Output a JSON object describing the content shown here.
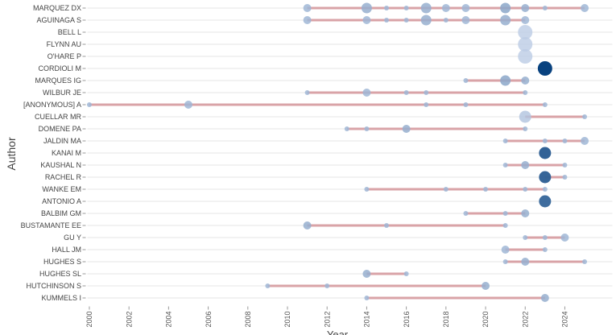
{
  "chart_data": {
    "type": "scatter",
    "xlabel": "Year",
    "ylabel": "Author",
    "xlim": [
      1999.9,
      2026.4
    ],
    "x_ticks": [
      2000,
      2002,
      2004,
      2006,
      2008,
      2010,
      2012,
      2014,
      2016,
      2018,
      2020,
      2022,
      2024
    ],
    "grid": "horizontal",
    "colors": {
      "timeline": "#d9a3a7",
      "bubble_light": "#c5d3ea",
      "bubble_dark": "#08427f",
      "grid": "#e6e6e6"
    },
    "authors": [
      {
        "name": "MARQUEZ DX",
        "points": [
          {
            "year": 2011,
            "size": 2,
            "shade": 0.2
          },
          {
            "year": 2014,
            "size": 3,
            "shade": 0.25
          },
          {
            "year": 2015,
            "size": 1,
            "shade": 0.2
          },
          {
            "year": 2016,
            "size": 1,
            "shade": 0.2
          },
          {
            "year": 2017,
            "size": 3,
            "shade": 0.25
          },
          {
            "year": 2018,
            "size": 2,
            "shade": 0.2
          },
          {
            "year": 2019,
            "size": 2,
            "shade": 0.2
          },
          {
            "year": 2021,
            "size": 3,
            "shade": 0.3
          },
          {
            "year": 2022,
            "size": 2,
            "shade": 0.25
          },
          {
            "year": 2023,
            "size": 1,
            "shade": 0.2
          },
          {
            "year": 2025,
            "size": 2,
            "shade": 0.2
          }
        ]
      },
      {
        "name": "AGUINAGA S",
        "points": [
          {
            "year": 2011,
            "size": 2,
            "shade": 0.2
          },
          {
            "year": 2014,
            "size": 2,
            "shade": 0.2
          },
          {
            "year": 2015,
            "size": 1,
            "shade": 0.2
          },
          {
            "year": 2016,
            "size": 1,
            "shade": 0.2
          },
          {
            "year": 2017,
            "size": 3,
            "shade": 0.25
          },
          {
            "year": 2018,
            "size": 1,
            "shade": 0.2
          },
          {
            "year": 2019,
            "size": 2,
            "shade": 0.2
          },
          {
            "year": 2021,
            "size": 3,
            "shade": 0.25
          },
          {
            "year": 2022,
            "size": 2,
            "shade": 0.2
          }
        ]
      },
      {
        "name": "BELL L",
        "points": [
          {
            "year": 2022,
            "size": 5,
            "shade": 0.05
          }
        ]
      },
      {
        "name": "FLYNN AU",
        "points": [
          {
            "year": 2022,
            "size": 5,
            "shade": 0.05
          }
        ]
      },
      {
        "name": "O'HARE P",
        "points": [
          {
            "year": 2022,
            "size": 5,
            "shade": 0.05
          }
        ]
      },
      {
        "name": "CORDIOLI M",
        "points": [
          {
            "year": 2023,
            "size": 5,
            "shade": 1.0
          }
        ]
      },
      {
        "name": "MARQUES IG",
        "points": [
          {
            "year": 2019,
            "size": 1,
            "shade": 0.2
          },
          {
            "year": 2021,
            "size": 3,
            "shade": 0.3
          },
          {
            "year": 2022,
            "size": 2,
            "shade": 0.25
          }
        ]
      },
      {
        "name": "WILBUR JE",
        "points": [
          {
            "year": 2011,
            "size": 1,
            "shade": 0.2
          },
          {
            "year": 2014,
            "size": 2,
            "shade": 0.2
          },
          {
            "year": 2016,
            "size": 1,
            "shade": 0.2
          },
          {
            "year": 2017,
            "size": 1,
            "shade": 0.2
          },
          {
            "year": 2022,
            "size": 1,
            "shade": 0.2
          }
        ]
      },
      {
        "name": "[ANONYMOUS] A",
        "points": [
          {
            "year": 2000,
            "size": 1,
            "shade": 0.2
          },
          {
            "year": 2005,
            "size": 2,
            "shade": 0.2
          },
          {
            "year": 2017,
            "size": 1,
            "shade": 0.2
          },
          {
            "year": 2019,
            "size": 1,
            "shade": 0.2
          },
          {
            "year": 2023,
            "size": 1,
            "shade": 0.2
          }
        ]
      },
      {
        "name": "CUELLAR MR",
        "points": [
          {
            "year": 2022,
            "size": 4,
            "shade": 0.1
          },
          {
            "year": 2025,
            "size": 1,
            "shade": 0.2
          }
        ]
      },
      {
        "name": "DOMENE PA",
        "points": [
          {
            "year": 2013,
            "size": 1,
            "shade": 0.2
          },
          {
            "year": 2014,
            "size": 1,
            "shade": 0.2
          },
          {
            "year": 2016,
            "size": 2,
            "shade": 0.25
          },
          {
            "year": 2022,
            "size": 1,
            "shade": 0.2
          }
        ]
      },
      {
        "name": "JALDIN MA",
        "points": [
          {
            "year": 2021,
            "size": 1,
            "shade": 0.2
          },
          {
            "year": 2023,
            "size": 1,
            "shade": 0.2
          },
          {
            "year": 2024,
            "size": 1,
            "shade": 0.2
          },
          {
            "year": 2025,
            "size": 2,
            "shade": 0.2
          }
        ]
      },
      {
        "name": "KANAI M",
        "points": [
          {
            "year": 2023,
            "size": 4,
            "shade": 0.82
          }
        ]
      },
      {
        "name": "KAUSHAL N",
        "points": [
          {
            "year": 2021,
            "size": 1,
            "shade": 0.2
          },
          {
            "year": 2022,
            "size": 2,
            "shade": 0.25
          },
          {
            "year": 2024,
            "size": 1,
            "shade": 0.2
          }
        ]
      },
      {
        "name": "RACHEL R",
        "points": [
          {
            "year": 2023,
            "size": 4,
            "shade": 0.8
          },
          {
            "year": 2024,
            "size": 1,
            "shade": 0.2
          }
        ]
      },
      {
        "name": "WANKE EM",
        "points": [
          {
            "year": 2014,
            "size": 1,
            "shade": 0.2
          },
          {
            "year": 2018,
            "size": 1,
            "shade": 0.2
          },
          {
            "year": 2020,
            "size": 1,
            "shade": 0.2
          },
          {
            "year": 2022,
            "size": 1,
            "shade": 0.2
          },
          {
            "year": 2023,
            "size": 1,
            "shade": 0.2
          }
        ]
      },
      {
        "name": "ANTONIO A",
        "points": [
          {
            "year": 2023,
            "size": 4,
            "shade": 0.76
          }
        ]
      },
      {
        "name": "BALBIM GM",
        "points": [
          {
            "year": 2019,
            "size": 1,
            "shade": 0.2
          },
          {
            "year": 2021,
            "size": 1,
            "shade": 0.2
          },
          {
            "year": 2022,
            "size": 2,
            "shade": 0.25
          }
        ]
      },
      {
        "name": "BUSTAMANTE EE",
        "points": [
          {
            "year": 2011,
            "size": 2,
            "shade": 0.25
          },
          {
            "year": 2015,
            "size": 1,
            "shade": 0.2
          },
          {
            "year": 2021,
            "size": 1,
            "shade": 0.2
          }
        ]
      },
      {
        "name": "GU Y",
        "points": [
          {
            "year": 2022,
            "size": 1,
            "shade": 0.2
          },
          {
            "year": 2023,
            "size": 1,
            "shade": 0.2
          },
          {
            "year": 2024,
            "size": 2,
            "shade": 0.2
          }
        ]
      },
      {
        "name": "HALL JM",
        "points": [
          {
            "year": 2021,
            "size": 2,
            "shade": 0.2
          },
          {
            "year": 2023,
            "size": 1,
            "shade": 0.2
          }
        ]
      },
      {
        "name": "HUGHES S",
        "points": [
          {
            "year": 2021,
            "size": 1,
            "shade": 0.2
          },
          {
            "year": 2022,
            "size": 2,
            "shade": 0.25
          },
          {
            "year": 2025,
            "size": 1,
            "shade": 0.2
          }
        ]
      },
      {
        "name": "HUGHES SL",
        "points": [
          {
            "year": 2014,
            "size": 2,
            "shade": 0.25
          },
          {
            "year": 2016,
            "size": 1,
            "shade": 0.2
          }
        ]
      },
      {
        "name": "HUTCHINSON S",
        "points": [
          {
            "year": 2009,
            "size": 1,
            "shade": 0.2
          },
          {
            "year": 2012,
            "size": 1,
            "shade": 0.2
          },
          {
            "year": 2020,
            "size": 2,
            "shade": 0.25
          }
        ]
      },
      {
        "name": "KUMMELS I",
        "points": [
          {
            "year": 2014,
            "size": 1,
            "shade": 0.2
          },
          {
            "year": 2023,
            "size": 2,
            "shade": 0.25
          }
        ]
      }
    ]
  }
}
